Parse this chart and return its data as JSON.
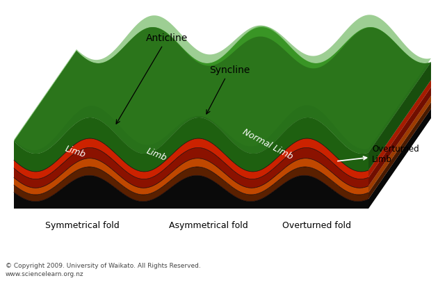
{
  "bg_color": "#ffffff",
  "layer_colors": {
    "green_top": "#2e7d1e",
    "green_mid": "#3a8a25",
    "green_dark": "#1e6010",
    "red_bright": "#cc2200",
    "red_dark": "#8b1200",
    "orange": "#c04800",
    "brown_dark": "#5a2000",
    "black_base": "#0a0a0a"
  },
  "labels": {
    "anticline": "Anticline",
    "syncline": "Syncline",
    "limb1": "Limb",
    "limb2": "Limb",
    "normal_limb": "Normal Limb",
    "overturned_limb": "Overturned\nLimb",
    "sym_fold": "Symmetrical fold",
    "asym_fold": "Asymmetrical fold",
    "over_fold": "Overturned fold",
    "copyright": "© Copyright 2009. University of Waikato. All Rights Reserved.",
    "website": "www.sciencelearn.org.nz"
  },
  "figsize": [
    6.3,
    4.2
  ],
  "dpi": 100
}
